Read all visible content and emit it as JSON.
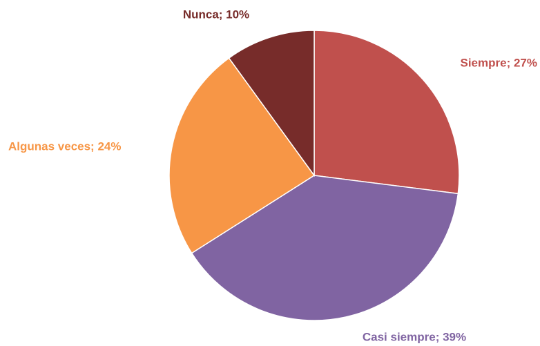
{
  "chart_data": {
    "type": "pie",
    "labels": [
      "Siempre; 27%",
      "Casi siempre; 39%",
      "Algunas veces; 24%",
      "Nunca; 10%"
    ],
    "values": [
      27,
      39,
      24,
      10
    ],
    "colors": [
      "#c0504d",
      "#8064a2",
      "#f79646",
      "#772c2a"
    ]
  }
}
